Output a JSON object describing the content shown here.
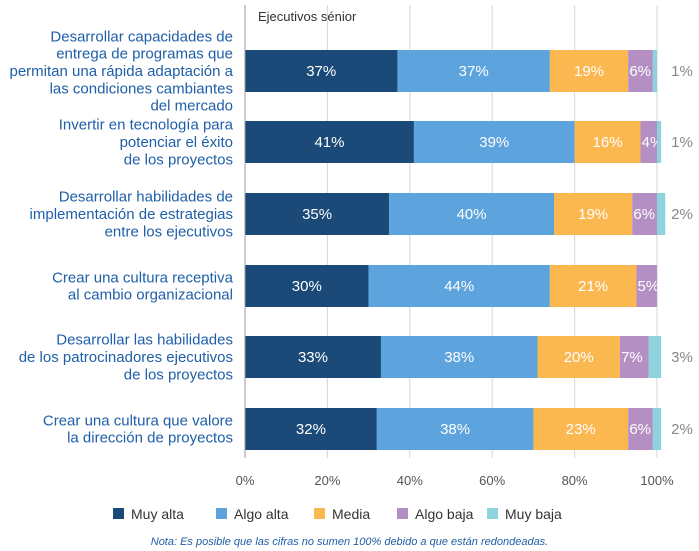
{
  "chart_data": {
    "type": "bar",
    "orientation": "horizontal",
    "stacked": true,
    "subtitle": "Ejecutivos sénior",
    "categories": [
      [
        "Desarrollar capacidades de",
        "entrega de programas que",
        "permitan una rápida adaptación a",
        "las condiciones cambiantes",
        "del mercado"
      ],
      [
        "Invertir en tecnología para",
        "potenciar el éxito",
        "de los proyectos"
      ],
      [
        "Desarrollar habilidades de",
        "implementación de estrategias",
        "entre los ejecutivos"
      ],
      [
        "Crear una cultura receptiva",
        "al cambio organizacional"
      ],
      [
        "Desarrollar las habilidades",
        "de los patrocinadores ejecutivos",
        "de los proyectos"
      ],
      [
        "Crear una cultura que valore",
        "la dirección de proyectos"
      ]
    ],
    "series": [
      {
        "name": "Muy alta",
        "color": "#1b4a78",
        "text_color": "#ffffff",
        "values": [
          37,
          41,
          35,
          30,
          33,
          32
        ],
        "labels": [
          "37%",
          "41%",
          "35%",
          "30%",
          "33%",
          "32%"
        ]
      },
      {
        "name": "Algo alta",
        "color": "#5da3dd",
        "text_color": "#ffffff",
        "values": [
          37,
          39,
          40,
          44,
          38,
          38
        ],
        "labels": [
          "37%",
          "39%",
          "40%",
          "44%",
          "38%",
          "38%"
        ]
      },
      {
        "name": "Media",
        "color": "#fbb750",
        "text_color": "#ffffff",
        "values": [
          19,
          16,
          19,
          21,
          20,
          23
        ],
        "labels": [
          "19%",
          "16%",
          "19%",
          "21%",
          "20%",
          "23%"
        ]
      },
      {
        "name": "Algo baja",
        "color": "#b48fc3",
        "text_color": "#ffffff",
        "values": [
          6,
          4,
          6,
          5,
          7,
          6
        ],
        "labels": [
          "6%",
          "4%",
          "6%",
          "5%",
          "7%",
          "6%"
        ]
      },
      {
        "name": "Muy baja",
        "color": "#8dd3dd",
        "text_color": "#888888",
        "values": [
          1,
          1,
          2,
          0,
          3,
          2
        ],
        "labels": [
          "1%",
          "1%",
          "2%",
          "",
          "3%",
          "2%"
        ]
      }
    ],
    "xlim": [
      0,
      100
    ],
    "xticks": [
      "0%",
      "20%",
      "40%",
      "60%",
      "80%",
      "100%"
    ],
    "legend_position": "bottom",
    "note": "Nota: Es posible que las cifras no sumen 100% debido a que están redondeadas."
  }
}
